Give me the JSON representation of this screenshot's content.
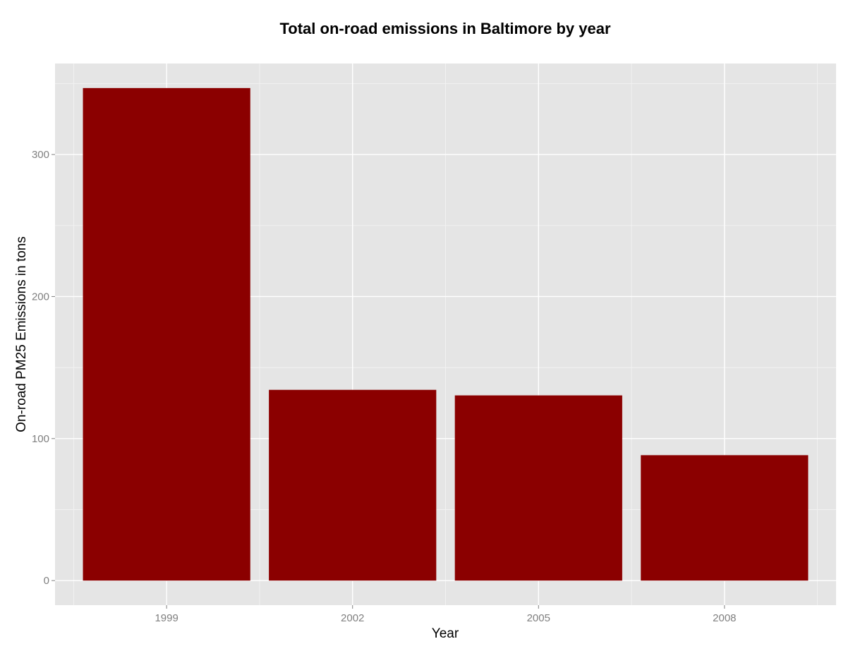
{
  "chart_data": {
    "type": "bar",
    "title": "Total on-road emissions in Baltimore by year",
    "xlabel": "Year",
    "ylabel": "On-road PM25 Emissions in tons",
    "categories": [
      "1999",
      "2002",
      "2005",
      "2008"
    ],
    "values": [
      346.8,
      134.3,
      130.4,
      88.3
    ],
    "ylim": [
      -17.3,
      364.1
    ],
    "yticks": [
      0,
      100,
      200,
      300
    ],
    "grid": true,
    "legend": "none",
    "colors": {
      "bar": "#8b0000",
      "panel_background": "#e5e5e5",
      "grid_major": "#ffffff",
      "grid_minor": "#f2f2f2",
      "tick_text": "#7f7f7f"
    }
  }
}
